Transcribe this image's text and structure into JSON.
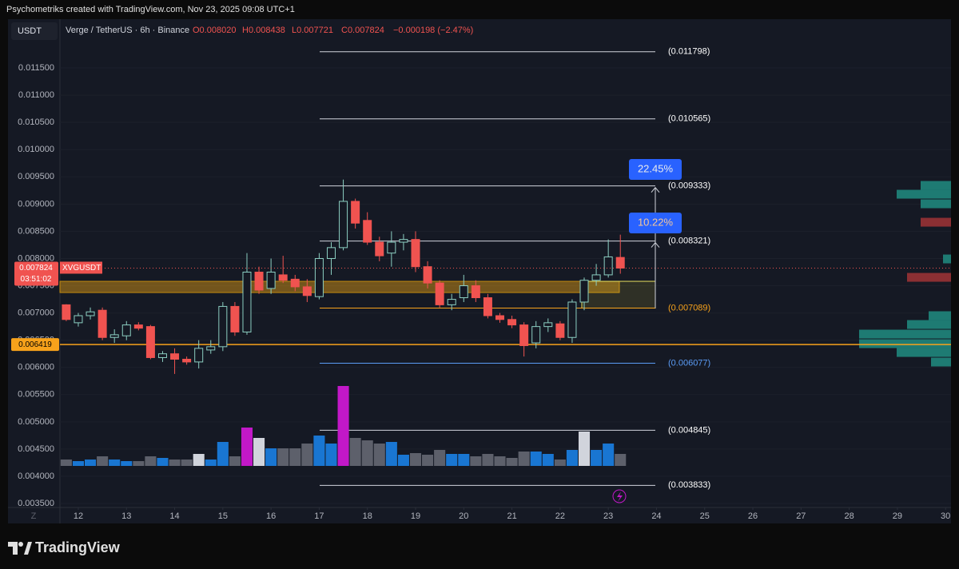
{
  "header": {
    "credit": "Psychometriks created with TradingView.com, Nov 23, 2025 09:08 UTC+1",
    "currency": "USDT",
    "symbol": "Verge / TetherUS · 6h · Binance",
    "ohlc": [
      "O0.008020",
      "H0.008438",
      "L0.007721",
      "C0.007824"
    ],
    "change": "−0.000198 (−2.47%)",
    "axis_corner": "Z",
    "brand": "TradingView"
  },
  "chart_data": {
    "type": "candlestick",
    "x": [
      11.75,
      12,
      12.25,
      12.5,
      12.75,
      13,
      13.25,
      13.5,
      13.75,
      14,
      14.25,
      14.5,
      14.75,
      15,
      15.25,
      15.5,
      15.75,
      16,
      16.25,
      16.5,
      16.75,
      17,
      17.25,
      17.5,
      17.75,
      18,
      18.25,
      18.5,
      18.75,
      19,
      19.25,
      19.5,
      19.75,
      20,
      20.25,
      20.5,
      20.75,
      21,
      21.25,
      21.5,
      21.75,
      22,
      22.25,
      22.5,
      22.75,
      23,
      23.25
    ],
    "series": [
      {
        "name": "XVGUSDT",
        "up_color": "#8ccfc2",
        "down_color": "#f05350",
        "open": [
          0.00715,
          0.00682,
          0.00695,
          0.00705,
          0.00655,
          0.00658,
          0.00678,
          0.00675,
          0.00618,
          0.00625,
          0.00615,
          0.0061,
          0.00632,
          0.00638,
          0.00712,
          0.00665,
          0.00775,
          0.00745,
          0.0077,
          0.00762,
          0.00748,
          0.0073,
          0.008,
          0.0082,
          0.00905,
          0.0087,
          0.0083,
          0.0081,
          0.0083,
          0.00835,
          0.00785,
          0.00755,
          0.00715,
          0.00728,
          0.0075,
          0.00728,
          0.00695,
          0.00688,
          0.00678,
          0.00645,
          0.00675,
          0.0068,
          0.00655,
          0.0072,
          0.0076,
          0.0077,
          0.00802
        ],
        "high": [
          0.00716,
          0.007,
          0.0071,
          0.0071,
          0.0067,
          0.00685,
          0.00683,
          0.00678,
          0.0063,
          0.00635,
          0.0062,
          0.0065,
          0.0065,
          0.0072,
          0.0072,
          0.0081,
          0.00785,
          0.008,
          0.00805,
          0.0077,
          0.00762,
          0.0081,
          0.0083,
          0.00945,
          0.0091,
          0.00885,
          0.0084,
          0.0085,
          0.00845,
          0.0085,
          0.00795,
          0.0076,
          0.00735,
          0.0077,
          0.0076,
          0.00735,
          0.007,
          0.00695,
          0.00683,
          0.00685,
          0.0069,
          0.00685,
          0.00725,
          0.00765,
          0.0079,
          0.00835,
          0.008438
        ],
        "low": [
          0.00685,
          0.00675,
          0.00688,
          0.0065,
          0.00645,
          0.0065,
          0.00668,
          0.00615,
          0.0061,
          0.00588,
          0.00605,
          0.00598,
          0.00625,
          0.0063,
          0.00658,
          0.0066,
          0.00735,
          0.00735,
          0.00755,
          0.0074,
          0.0072,
          0.00725,
          0.0077,
          0.00815,
          0.00855,
          0.00825,
          0.00795,
          0.00785,
          0.00815,
          0.00775,
          0.00745,
          0.0071,
          0.00705,
          0.0072,
          0.0072,
          0.0069,
          0.00682,
          0.00672,
          0.0062,
          0.00635,
          0.00665,
          0.0065,
          0.00645,
          0.00705,
          0.0075,
          0.00765,
          0.007721
        ],
        "close": [
          0.00688,
          0.00695,
          0.00702,
          0.00655,
          0.0066,
          0.00678,
          0.00672,
          0.00618,
          0.00625,
          0.00615,
          0.0061,
          0.00635,
          0.00638,
          0.00712,
          0.00665,
          0.00775,
          0.00742,
          0.00775,
          0.0076,
          0.00748,
          0.00732,
          0.008,
          0.0082,
          0.00905,
          0.00865,
          0.0083,
          0.00805,
          0.0083,
          0.00835,
          0.00785,
          0.00755,
          0.00715,
          0.00725,
          0.0075,
          0.00728,
          0.00695,
          0.00688,
          0.00678,
          0.0064,
          0.00675,
          0.00682,
          0.00655,
          0.0072,
          0.0076,
          0.0077,
          0.00803,
          0.007824
        ],
        "volume": [
          8,
          6,
          8,
          12,
          8,
          6,
          6,
          12,
          10,
          8,
          8,
          15,
          8,
          30,
          12,
          48,
          35,
          22,
          22,
          22,
          28,
          38,
          28,
          100,
          35,
          32,
          28,
          30,
          14,
          16,
          14,
          20,
          15,
          15,
          12,
          15,
          12,
          10,
          18,
          18,
          15,
          8,
          20,
          43,
          20,
          28,
          15
        ],
        "volume_colors": [
          "#5d606b",
          "#1976d2",
          "#1976d2",
          "#5d606b",
          "#1976d2",
          "#1976d2",
          "#5d606b",
          "#5d606b",
          "#1976d2",
          "#5d606b",
          "#5d606b",
          "#d1d4dc",
          "#1976d2",
          "#1976d2",
          "#5d606b",
          "#c218c8",
          "#d1d4dc",
          "#1976d2",
          "#5d606b",
          "#5d606b",
          "#5d606b",
          "#1976d2",
          "#1976d2",
          "#c218c8",
          "#5d606b",
          "#5d606b",
          "#5d606b",
          "#1976d2",
          "#1976d2",
          "#5d606b",
          "#5d606b",
          "#5d606b",
          "#1976d2",
          "#1976d2",
          "#5d606b",
          "#5d606b",
          "#5d606b",
          "#5d606b",
          "#5d606b",
          "#1976d2",
          "#1976d2",
          "#5d606b",
          "#1976d2",
          "#d1d4dc",
          "#1976d2",
          "#1976d2",
          "#5d606b"
        ]
      }
    ],
    "countdown": "03:51:02",
    "xlim": [
      11.619,
      30.113
    ],
    "xticks": [
      12,
      13,
      14,
      15,
      16,
      17,
      18,
      19,
      20,
      21,
      22,
      23,
      24,
      25,
      26,
      27,
      28,
      29,
      30
    ],
    "ylim": [
      0.003427,
      0.012044
    ],
    "yticks": [
      {
        "value": 0.0035,
        "label": "0.003500"
      },
      {
        "value": 0.004,
        "label": "0.004000"
      },
      {
        "value": 0.0045,
        "label": "0.004500"
      },
      {
        "value": 0.005,
        "label": "0.005000"
      },
      {
        "value": 0.0055,
        "label": "0.005500"
      },
      {
        "value": 0.006,
        "label": "0.006000"
      },
      {
        "value": 0.0065,
        "label": "0.006500"
      },
      {
        "value": 0.007,
        "label": "0.007000"
      },
      {
        "value": 0.0075,
        "label": "0.007500"
      },
      {
        "value": 0.008,
        "label": "0.008000"
      },
      {
        "value": 0.0085,
        "label": "0.008500"
      },
      {
        "value": 0.009,
        "label": "0.009000"
      },
      {
        "value": 0.0095,
        "label": "0.009500"
      },
      {
        "value": 0.01,
        "label": "0.010000"
      },
      {
        "value": 0.0105,
        "label": "0.010500"
      },
      {
        "value": 0.011,
        "label": "0.011000"
      },
      {
        "value": 0.0115,
        "label": "0.011500"
      }
    ],
    "levels": [
      {
        "value": 0.011798,
        "label": "(0.011798)",
        "color": "#d1d4dc"
      },
      {
        "value": 0.010565,
        "label": "(0.010565)",
        "color": "#d1d4dc"
      },
      {
        "value": 0.009333,
        "label": "(0.009333)",
        "color": "#d1d4dc"
      },
      {
        "value": 0.008321,
        "label": "(0.008321)",
        "color": "#d1d4dc"
      },
      {
        "value": 0.007089,
        "label": "(0.007089)",
        "color": "#f7a21b"
      },
      {
        "value": 0.006077,
        "label": "(0.006077)",
        "color": "#5b9cf6"
      },
      {
        "value": 0.004845,
        "label": "(0.004845)",
        "color": "#d1d4dc"
      },
      {
        "value": 0.003833,
        "label": "(0.003833)",
        "color": "#d1d4dc"
      }
    ],
    "hline": {
      "value": 0.006419,
      "color": "#f7a21b"
    },
    "zones": [
      [
        0.007375,
        0.007581
      ],
      [
        0.007089,
        0.007581
      ]
    ],
    "annotations": [
      "22.45%",
      "10.22%"
    ],
    "volume_profile": [
      {
        "price": 0.009343,
        "size": 38,
        "color": "#1e7b73"
      },
      {
        "price": 0.009181,
        "size": 68,
        "color": "#1e7b73"
      },
      {
        "price": 0.009005,
        "size": 38,
        "color": "#1e7b73"
      },
      {
        "price": 0.008667,
        "size": 38,
        "color": "#8b2f33"
      },
      {
        "price": 0.007992,
        "size": 10,
        "color": "#1e7b73"
      },
      {
        "price": 0.007654,
        "size": 55,
        "color": "#8b2f33"
      },
      {
        "price": 0.00695,
        "size": 28,
        "color": "#1e7b73"
      },
      {
        "price": 0.006788,
        "size": 55,
        "color": "#1e7b73"
      },
      {
        "price": 0.006612,
        "size": 115,
        "color": "#1e7b73"
      },
      {
        "price": 0.006436,
        "size": 115,
        "color": "#1e7b73"
      },
      {
        "price": 0.006274,
        "size": 68,
        "color": "#1e7b73"
      },
      {
        "price": 0.006098,
        "size": 25,
        "color": "#1e7b73"
      }
    ]
  }
}
